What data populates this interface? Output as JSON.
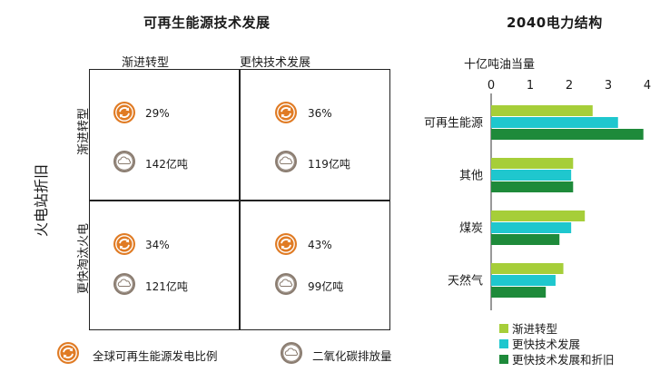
{
  "matrix": {
    "title": "可再生能源技术发展",
    "col_headers": [
      "渐进转型",
      "更快技术发展"
    ],
    "row_headers": [
      "渐进转型",
      "更快淘汰火电"
    ],
    "side_label": "火电站折旧",
    "cells": [
      {
        "renew_share": "29%",
        "co2": "142亿吨"
      },
      {
        "renew_share": "36%",
        "co2": "119亿吨"
      },
      {
        "renew_share": "34%",
        "co2": "121亿吨"
      },
      {
        "renew_share": "43%",
        "co2": "99亿吨"
      }
    ],
    "legend": {
      "renew_label": "全球可再生能源发电比例",
      "co2_label": "二氧化碳排放量",
      "co2_icon_text": "CO₂"
    }
  },
  "colors": {
    "icon_orange": "#E07B24",
    "icon_gray": "#8A7C70",
    "series": [
      "#A6CE39",
      "#1FC7CE",
      "#1E8A3A"
    ]
  },
  "chart_data": {
    "type": "bar",
    "orientation": "horizontal",
    "title": "2040电力结构",
    "unit_label": "十亿吨油当量",
    "categories": [
      "可再生能源",
      "其他",
      "煤炭",
      "天然气"
    ],
    "series": [
      {
        "name": "渐进转型",
        "values": [
          2.6,
          2.1,
          2.4,
          1.85
        ]
      },
      {
        "name": "更快技术发展",
        "values": [
          3.25,
          2.05,
          2.05,
          1.65
        ]
      },
      {
        "name": "更快技术发展和折旧",
        "values": [
          3.9,
          2.1,
          1.75,
          1.4
        ]
      }
    ],
    "xlim": [
      0,
      4
    ],
    "xticks": [
      "0",
      "1",
      "2",
      "3",
      "4"
    ],
    "grid": false,
    "legend_position": "bottom"
  }
}
